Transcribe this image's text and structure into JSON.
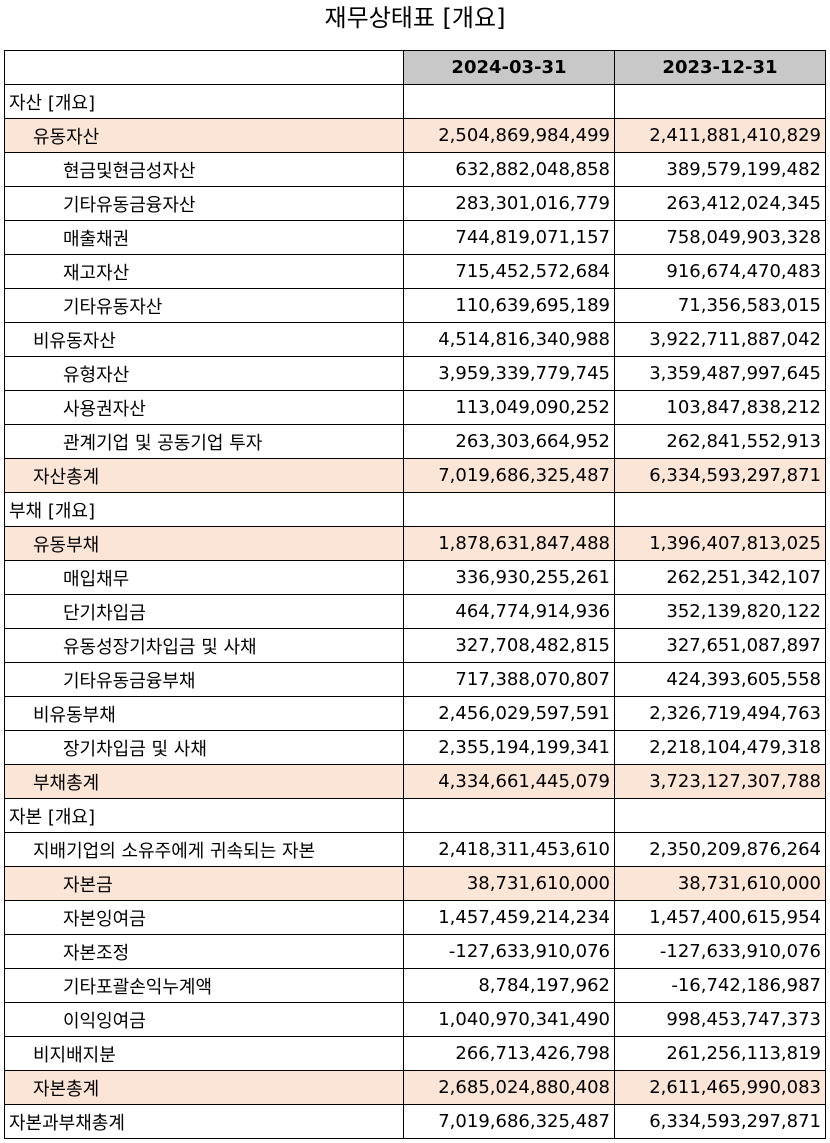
{
  "title": "재무상태표 [개요]",
  "columns": [
    "2024-03-31",
    "2023-12-31"
  ],
  "highlight_color": "#fbe5d6",
  "header_color": "#c8c8c8",
  "rows": [
    {
      "label": "자산 [개요]",
      "level": 0,
      "highlight": false,
      "v1": "",
      "v2": ""
    },
    {
      "label": "유동자산",
      "level": 1,
      "highlight": true,
      "v1": "2,504,869,984,499",
      "v2": "2,411,881,410,829"
    },
    {
      "label": "현금및현금성자산",
      "level": 2,
      "highlight": false,
      "v1": "632,882,048,858",
      "v2": "389,579,199,482"
    },
    {
      "label": "기타유동금융자산",
      "level": 2,
      "highlight": false,
      "v1": "283,301,016,779",
      "v2": "263,412,024,345"
    },
    {
      "label": "매출채권",
      "level": 2,
      "highlight": false,
      "v1": "744,819,071,157",
      "v2": "758,049,903,328"
    },
    {
      "label": "재고자산",
      "level": 2,
      "highlight": false,
      "v1": "715,452,572,684",
      "v2": "916,674,470,483"
    },
    {
      "label": "기타유동자산",
      "level": 2,
      "highlight": false,
      "v1": "110,639,695,189",
      "v2": "71,356,583,015"
    },
    {
      "label": "비유동자산",
      "level": 1,
      "highlight": false,
      "v1": "4,514,816,340,988",
      "v2": "3,922,711,887,042"
    },
    {
      "label": "유형자산",
      "level": 2,
      "highlight": false,
      "v1": "3,959,339,779,745",
      "v2": "3,359,487,997,645"
    },
    {
      "label": "사용권자산",
      "level": 2,
      "highlight": false,
      "v1": "113,049,090,252",
      "v2": "103,847,838,212"
    },
    {
      "label": "관계기업 및 공동기업 투자",
      "level": 2,
      "highlight": false,
      "v1": "263,303,664,952",
      "v2": "262,841,552,913"
    },
    {
      "label": "자산총계",
      "level": 1,
      "highlight": true,
      "v1": "7,019,686,325,487",
      "v2": "6,334,593,297,871"
    },
    {
      "label": "부채 [개요]",
      "level": 0,
      "highlight": false,
      "v1": "",
      "v2": ""
    },
    {
      "label": "유동부채",
      "level": 1,
      "highlight": true,
      "v1": "1,878,631,847,488",
      "v2": "1,396,407,813,025"
    },
    {
      "label": "매입채무",
      "level": 2,
      "highlight": false,
      "v1": "336,930,255,261",
      "v2": "262,251,342,107"
    },
    {
      "label": "단기차입금",
      "level": 2,
      "highlight": false,
      "v1": "464,774,914,936",
      "v2": "352,139,820,122"
    },
    {
      "label": "유동성장기차입금 및 사채",
      "level": 2,
      "highlight": false,
      "v1": "327,708,482,815",
      "v2": "327,651,087,897"
    },
    {
      "label": "기타유동금융부채",
      "level": 2,
      "highlight": false,
      "v1": "717,388,070,807",
      "v2": "424,393,605,558"
    },
    {
      "label": "비유동부채",
      "level": 1,
      "highlight": false,
      "v1": "2,456,029,597,591",
      "v2": "2,326,719,494,763"
    },
    {
      "label": "장기차입금 및 사채",
      "level": 2,
      "highlight": false,
      "v1": "2,355,194,199,341",
      "v2": "2,218,104,479,318"
    },
    {
      "label": "부채총계",
      "level": 1,
      "highlight": true,
      "v1": "4,334,661,445,079",
      "v2": "3,723,127,307,788"
    },
    {
      "label": "자본 [개요]",
      "level": 0,
      "highlight": false,
      "v1": "",
      "v2": ""
    },
    {
      "label": "지배기업의 소유주에게 귀속되는 자본",
      "level": 1,
      "highlight": false,
      "v1": "2,418,311,453,610",
      "v2": "2,350,209,876,264"
    },
    {
      "label": "자본금",
      "level": 2,
      "highlight": true,
      "v1": "38,731,610,000",
      "v2": "38,731,610,000"
    },
    {
      "label": "자본잉여금",
      "level": 2,
      "highlight": false,
      "v1": "1,457,459,214,234",
      "v2": "1,457,400,615,954"
    },
    {
      "label": "자본조정",
      "level": 2,
      "highlight": false,
      "v1": "-127,633,910,076",
      "v2": "-127,633,910,076"
    },
    {
      "label": "기타포괄손익누계액",
      "level": 2,
      "highlight": false,
      "v1": "8,784,197,962",
      "v2": "-16,742,186,987"
    },
    {
      "label": "이익잉여금",
      "level": 2,
      "highlight": false,
      "v1": "1,040,970,341,490",
      "v2": "998,453,747,373"
    },
    {
      "label": "비지배지분",
      "level": 1,
      "highlight": false,
      "v1": "266,713,426,798",
      "v2": "261,256,113,819"
    },
    {
      "label": "자본총계",
      "level": 1,
      "highlight": true,
      "v1": "2,685,024,880,408",
      "v2": "2,611,465,990,083"
    },
    {
      "label": "자본과부채총계",
      "level": 0,
      "highlight": false,
      "v1": "7,019,686,325,487",
      "v2": "6,334,593,297,871"
    }
  ]
}
